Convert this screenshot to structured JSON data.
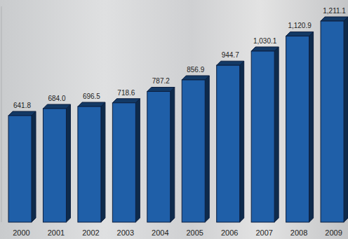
{
  "chart_data": {
    "type": "bar",
    "categories": [
      "2000",
      "2001",
      "2002",
      "2003",
      "2004",
      "2005",
      "2006",
      "2007",
      "2008",
      "2009"
    ],
    "values": [
      641.8,
      684.0,
      696.5,
      718.6,
      787.2,
      856.9,
      944.7,
      1030.1,
      1120.9,
      1211.1
    ],
    "value_labels": [
      "641.8",
      "684.0",
      "696.5",
      "718.6",
      "787.2",
      "856.9",
      "944.7",
      "1,030.1",
      "1,120.9",
      "1,211.1"
    ],
    "color": "#1f5fa8",
    "ylim": [
      0,
      1300
    ],
    "grid": false,
    "data_labels": true,
    "tick_labels": "x"
  }
}
